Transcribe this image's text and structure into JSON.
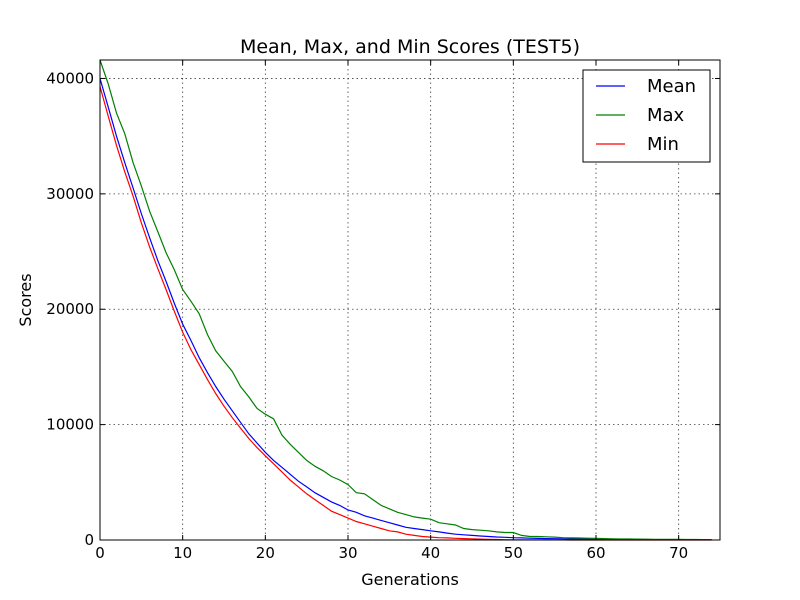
{
  "chart_data": {
    "type": "line",
    "title": "Mean, Max, and Min Scores (TEST5)",
    "xlabel": "Generations",
    "ylabel": "Scores",
    "xlim": [
      0,
      75
    ],
    "ylim": [
      0,
      41600
    ],
    "xticks": [
      0,
      10,
      20,
      30,
      40,
      50,
      60,
      70
    ],
    "yticks": [
      0,
      10000,
      20000,
      30000,
      40000
    ],
    "grid": true,
    "legend_position": "top-right",
    "x": [
      0,
      1,
      2,
      3,
      4,
      5,
      6,
      7,
      8,
      9,
      10,
      11,
      12,
      13,
      14,
      15,
      16,
      17,
      18,
      19,
      20,
      21,
      22,
      23,
      24,
      25,
      26,
      27,
      28,
      29,
      30,
      31,
      32,
      33,
      34,
      35,
      36,
      37,
      38,
      39,
      40,
      41,
      42,
      43,
      44,
      45,
      46,
      47,
      48,
      49,
      50,
      51,
      52,
      53,
      54,
      55,
      56,
      57,
      58,
      59,
      60,
      61,
      62,
      63,
      64,
      65,
      66,
      67,
      68,
      69,
      70,
      71,
      72,
      73,
      74
    ],
    "series": [
      {
        "name": "Mean",
        "color": "#0000ff",
        "values": [
          40000,
          37500,
          35000,
          32700,
          30500,
          28300,
          26200,
          24200,
          22400,
          20500,
          18700,
          17300,
          15800,
          14500,
          13300,
          12200,
          11200,
          10200,
          9200,
          8400,
          7600,
          6900,
          6300,
          5700,
          5100,
          4600,
          4100,
          3700,
          3300,
          3000,
          2600,
          2400,
          2100,
          1900,
          1700,
          1500,
          1300,
          1100,
          1000,
          900,
          800,
          700,
          600,
          500,
          450,
          400,
          350,
          300,
          260,
          230,
          200,
          180,
          160,
          140,
          120,
          110,
          100,
          90,
          80,
          75,
          70,
          65,
          60,
          55,
          50,
          45,
          40,
          38,
          35,
          33,
          30,
          28,
          25,
          22,
          20
        ]
      },
      {
        "name": "Max",
        "color": "#008000",
        "values": [
          41600,
          39500,
          37000,
          35200,
          32700,
          30700,
          28500,
          26700,
          24900,
          23400,
          21700,
          20700,
          19600,
          17800,
          16400,
          15500,
          14600,
          13300,
          12400,
          11400,
          10900,
          10500,
          9100,
          8300,
          7600,
          6900,
          6400,
          6000,
          5500,
          5200,
          4800,
          4100,
          4000,
          3500,
          3000,
          2700,
          2400,
          2200,
          2000,
          1900,
          1800,
          1500,
          1400,
          1300,
          1000,
          900,
          850,
          800,
          700,
          650,
          650,
          400,
          300,
          300,
          280,
          250,
          200,
          180,
          170,
          160,
          150,
          120,
          100,
          90,
          85,
          80,
          70,
          65,
          60,
          55,
          50,
          45,
          40,
          35,
          30
        ]
      },
      {
        "name": "Min",
        "color": "#ff0000",
        "values": [
          39300,
          36700,
          34200,
          31900,
          29800,
          27500,
          25400,
          23500,
          21700,
          19800,
          18000,
          16500,
          15200,
          13900,
          12700,
          11600,
          10600,
          9700,
          8800,
          8000,
          7300,
          6600,
          5900,
          5200,
          4600,
          4000,
          3500,
          3000,
          2500,
          2200,
          1900,
          1600,
          1400,
          1200,
          1000,
          800,
          700,
          500,
          400,
          300,
          250,
          200,
          180,
          150,
          120,
          100,
          80,
          60,
          40,
          30,
          20,
          15,
          12,
          10,
          8,
          6,
          5,
          4,
          3,
          2,
          1,
          0,
          0,
          0,
          0,
          0,
          0,
          0,
          0,
          0,
          0,
          0,
          0,
          0,
          0
        ]
      }
    ]
  }
}
